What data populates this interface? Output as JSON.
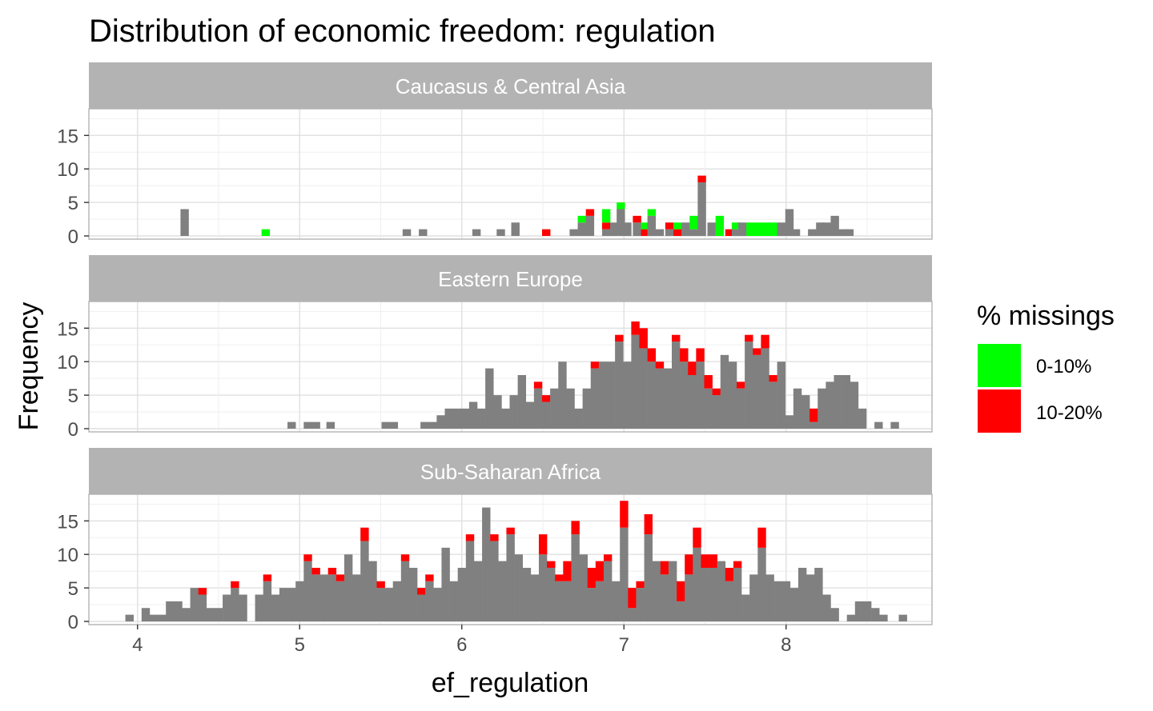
{
  "chart_data": {
    "type": "bar",
    "subtype": "faceted stacked histogram",
    "title": "Distribution of economic freedom: regulation",
    "xlabel": "ef_regulation",
    "ylabel": "Frequency",
    "xlim": [
      3.7,
      8.9
    ],
    "ylim": [
      0,
      18.5
    ],
    "x_ticks": [
      4,
      5,
      6,
      7,
      8
    ],
    "y_ticks": [
      0,
      5,
      10,
      15
    ],
    "bin_width": 0.05,
    "grid": true,
    "legend": {
      "title": "% missings",
      "position": "right",
      "items": [
        {
          "label": "0-10%",
          "color": "#00ff00"
        },
        {
          "label": "10-20%",
          "color": "#ff0000"
        }
      ]
    },
    "series": [
      {
        "key": "base",
        "color": "#808080"
      },
      {
        "key": "green",
        "name": "0-10%",
        "color": "#00ff00"
      },
      {
        "key": "red",
        "name": "10-20%",
        "color": "#ff0000"
      }
    ],
    "facets": [
      {
        "label": "Caucasus & Central Asia",
        "bars": [
          [
            4.29,
            4,
            0,
            0
          ],
          [
            4.79,
            0,
            1,
            0
          ],
          [
            5.66,
            1,
            0,
            0
          ],
          [
            5.76,
            1,
            0,
            0
          ],
          [
            6.09,
            1,
            0,
            0
          ],
          [
            6.24,
            1,
            0,
            0
          ],
          [
            6.33,
            2,
            0,
            0
          ],
          [
            6.52,
            0,
            0,
            1
          ],
          [
            6.69,
            1,
            0,
            0
          ],
          [
            6.74,
            2,
            1,
            0
          ],
          [
            6.79,
            3,
            0,
            1
          ],
          [
            6.89,
            1,
            2,
            1
          ],
          [
            6.94,
            2,
            0,
            0
          ],
          [
            6.98,
            4,
            1,
            0
          ],
          [
            7.02,
            2,
            0,
            0
          ],
          [
            7.08,
            2,
            0,
            1
          ],
          [
            7.13,
            0,
            1,
            1
          ],
          [
            7.17,
            3,
            1,
            0
          ],
          [
            7.22,
            1,
            0,
            0
          ],
          [
            7.28,
            1,
            0,
            1
          ],
          [
            7.33,
            0,
            1,
            1
          ],
          [
            7.38,
            2,
            0,
            0
          ],
          [
            7.43,
            1,
            2,
            0
          ],
          [
            7.48,
            8,
            0,
            1
          ],
          [
            7.54,
            2,
            0,
            0
          ],
          [
            7.59,
            0,
            3,
            0
          ],
          [
            7.65,
            0,
            0,
            1
          ],
          [
            7.69,
            1,
            1,
            0
          ],
          [
            7.73,
            2,
            0,
            0
          ],
          [
            7.78,
            0,
            2,
            0
          ],
          [
            7.83,
            0,
            2,
            0
          ],
          [
            7.88,
            0,
            2,
            0
          ],
          [
            7.92,
            0,
            2,
            0
          ],
          [
            7.97,
            2,
            0,
            0
          ],
          [
            8.02,
            4,
            0,
            0
          ],
          [
            8.06,
            1,
            0,
            0
          ],
          [
            8.16,
            1,
            0,
            0
          ],
          [
            8.21,
            2,
            0,
            0
          ],
          [
            8.25,
            2,
            0,
            0
          ],
          [
            8.3,
            3,
            0,
            0
          ],
          [
            8.35,
            1,
            0,
            0
          ],
          [
            8.39,
            1,
            0,
            0
          ]
        ]
      },
      {
        "label": "Eastern Europe",
        "bars": [
          [
            4.95,
            1,
            0,
            0
          ],
          [
            5.05,
            1,
            0,
            0
          ],
          [
            5.1,
            1,
            0,
            0
          ],
          [
            5.19,
            1,
            0,
            0
          ],
          [
            5.53,
            1,
            0,
            0
          ],
          [
            5.58,
            1,
            0,
            0
          ],
          [
            5.77,
            1,
            0,
            0
          ],
          [
            5.82,
            1,
            0,
            0
          ],
          [
            5.87,
            2,
            0,
            0
          ],
          [
            5.92,
            3,
            0,
            0
          ],
          [
            5.97,
            3,
            0,
            0
          ],
          [
            6.02,
            3,
            0,
            0
          ],
          [
            6.07,
            4,
            0,
            0
          ],
          [
            6.12,
            3,
            0,
            0
          ],
          [
            6.17,
            9,
            0,
            0
          ],
          [
            6.22,
            5,
            0,
            0
          ],
          [
            6.27,
            3,
            0,
            0
          ],
          [
            6.32,
            5,
            0,
            0
          ],
          [
            6.37,
            8,
            0,
            0
          ],
          [
            6.42,
            4,
            0,
            0
          ],
          [
            6.47,
            6,
            0,
            1
          ],
          [
            6.52,
            4,
            0,
            1
          ],
          [
            6.57,
            6,
            0,
            0
          ],
          [
            6.62,
            10,
            0,
            0
          ],
          [
            6.67,
            6,
            0,
            0
          ],
          [
            6.72,
            3,
            0,
            0
          ],
          [
            6.77,
            6,
            0,
            0
          ],
          [
            6.82,
            9,
            0,
            1
          ],
          [
            6.87,
            10,
            0,
            0
          ],
          [
            6.92,
            10,
            0,
            0
          ],
          [
            6.97,
            13,
            0,
            1
          ],
          [
            7.02,
            10,
            0,
            0
          ],
          [
            7.07,
            14,
            0,
            2
          ],
          [
            7.12,
            12,
            0,
            3
          ],
          [
            7.17,
            10,
            0,
            2
          ],
          [
            7.22,
            9,
            0,
            1
          ],
          [
            7.27,
            9,
            0,
            0
          ],
          [
            7.32,
            13,
            0,
            1
          ],
          [
            7.37,
            10,
            0,
            2
          ],
          [
            7.42,
            8,
            0,
            2
          ],
          [
            7.47,
            10,
            0,
            2
          ],
          [
            7.52,
            6,
            0,
            2
          ],
          [
            7.57,
            5,
            0,
            1
          ],
          [
            7.62,
            11,
            0,
            0
          ],
          [
            7.67,
            10,
            0,
            0
          ],
          [
            7.72,
            6,
            0,
            1
          ],
          [
            7.77,
            13,
            0,
            1
          ],
          [
            7.82,
            11,
            0,
            1
          ],
          [
            7.87,
            12,
            0,
            2
          ],
          [
            7.92,
            7,
            0,
            1
          ],
          [
            7.97,
            10,
            0,
            0
          ],
          [
            8.02,
            2,
            0,
            0
          ],
          [
            8.07,
            6,
            0,
            0
          ],
          [
            8.12,
            5,
            0,
            0
          ],
          [
            8.17,
            1,
            0,
            2
          ],
          [
            8.22,
            6,
            0,
            0
          ],
          [
            8.27,
            7,
            0,
            0
          ],
          [
            8.32,
            8,
            0,
            0
          ],
          [
            8.37,
            8,
            0,
            0
          ],
          [
            8.42,
            7,
            0,
            0
          ],
          [
            8.47,
            3,
            0,
            0
          ],
          [
            8.57,
            1,
            0,
            0
          ],
          [
            8.67,
            1,
            0,
            0
          ]
        ]
      },
      {
        "label": "Sub-Saharan Africa",
        "bars": [
          [
            3.95,
            1,
            0,
            0
          ],
          [
            4.05,
            2,
            0,
            0
          ],
          [
            4.1,
            1,
            0,
            0
          ],
          [
            4.15,
            1,
            0,
            0
          ],
          [
            4.2,
            3,
            0,
            0
          ],
          [
            4.25,
            3,
            0,
            0
          ],
          [
            4.3,
            2,
            0,
            0
          ],
          [
            4.35,
            5,
            0,
            0
          ],
          [
            4.4,
            4,
            0,
            1
          ],
          [
            4.45,
            2,
            0,
            0
          ],
          [
            4.5,
            2,
            0,
            0
          ],
          [
            4.55,
            4,
            0,
            0
          ],
          [
            4.6,
            5,
            0,
            1
          ],
          [
            4.65,
            4,
            0,
            0
          ],
          [
            4.75,
            4,
            0,
            0
          ],
          [
            4.8,
            6,
            0,
            1
          ],
          [
            4.85,
            4,
            0,
            0
          ],
          [
            4.9,
            5,
            0,
            0
          ],
          [
            4.95,
            5,
            0,
            0
          ],
          [
            5.0,
            6,
            0,
            0
          ],
          [
            5.05,
            9,
            0,
            1
          ],
          [
            5.1,
            7,
            0,
            1
          ],
          [
            5.15,
            7,
            0,
            0
          ],
          [
            5.2,
            7,
            0,
            1
          ],
          [
            5.25,
            6,
            0,
            1
          ],
          [
            5.3,
            10,
            0,
            0
          ],
          [
            5.35,
            7,
            0,
            0
          ],
          [
            5.4,
            12,
            0,
            2
          ],
          [
            5.45,
            9,
            0,
            0
          ],
          [
            5.5,
            5,
            0,
            1
          ],
          [
            5.55,
            5,
            0,
            0
          ],
          [
            5.6,
            6,
            0,
            0
          ],
          [
            5.65,
            9,
            0,
            1
          ],
          [
            5.7,
            8,
            0,
            0
          ],
          [
            5.75,
            4,
            0,
            1
          ],
          [
            5.8,
            6,
            0,
            1
          ],
          [
            5.85,
            5,
            0,
            0
          ],
          [
            5.9,
            11,
            0,
            0
          ],
          [
            5.95,
            6,
            0,
            0
          ],
          [
            6.0,
            8,
            0,
            0
          ],
          [
            6.05,
            12,
            0,
            1
          ],
          [
            6.1,
            9,
            0,
            0
          ],
          [
            6.15,
            17,
            0,
            0
          ],
          [
            6.2,
            12,
            0,
            1
          ],
          [
            6.25,
            9,
            0,
            0
          ],
          [
            6.3,
            13,
            0,
            1
          ],
          [
            6.35,
            10,
            0,
            0
          ],
          [
            6.4,
            8,
            0,
            0
          ],
          [
            6.45,
            7,
            0,
            0
          ],
          [
            6.5,
            10,
            0,
            3
          ],
          [
            6.55,
            8,
            0,
            1
          ],
          [
            6.6,
            6,
            0,
            1
          ],
          [
            6.65,
            6,
            0,
            3
          ],
          [
            6.7,
            13,
            0,
            2
          ],
          [
            6.75,
            10,
            0,
            0
          ],
          [
            6.8,
            5,
            0,
            3
          ],
          [
            6.85,
            6,
            0,
            3
          ],
          [
            6.9,
            9,
            0,
            1
          ],
          [
            6.95,
            6,
            0,
            0
          ],
          [
            7.0,
            14,
            0,
            4
          ],
          [
            7.05,
            2,
            0,
            3
          ],
          [
            7.1,
            5,
            0,
            1
          ],
          [
            7.15,
            13,
            0,
            3
          ],
          [
            7.2,
            9,
            0,
            0
          ],
          [
            7.25,
            7,
            0,
            2
          ],
          [
            7.3,
            9,
            0,
            0
          ],
          [
            7.35,
            3,
            0,
            3
          ],
          [
            7.4,
            7,
            0,
            3
          ],
          [
            7.45,
            11,
            0,
            3
          ],
          [
            7.5,
            8,
            0,
            2
          ],
          [
            7.55,
            8,
            0,
            2
          ],
          [
            7.6,
            9,
            0,
            0
          ],
          [
            7.65,
            6,
            0,
            2
          ],
          [
            7.7,
            8,
            0,
            1
          ],
          [
            7.75,
            4,
            0,
            0
          ],
          [
            7.8,
            7,
            0,
            0
          ],
          [
            7.85,
            11,
            0,
            3
          ],
          [
            7.9,
            7,
            0,
            0
          ],
          [
            7.95,
            6,
            0,
            0
          ],
          [
            8.0,
            6,
            0,
            0
          ],
          [
            8.05,
            5,
            0,
            0
          ],
          [
            8.1,
            8,
            0,
            0
          ],
          [
            8.15,
            7,
            0,
            0
          ],
          [
            8.2,
            8,
            0,
            0
          ],
          [
            8.25,
            4,
            0,
            0
          ],
          [
            8.3,
            2,
            0,
            0
          ],
          [
            8.4,
            1,
            0,
            0
          ],
          [
            8.45,
            3,
            0,
            0
          ],
          [
            8.5,
            3,
            0,
            0
          ],
          [
            8.55,
            2,
            0,
            0
          ],
          [
            8.6,
            1,
            0,
            0
          ],
          [
            8.72,
            1,
            0,
            0
          ]
        ]
      }
    ]
  }
}
